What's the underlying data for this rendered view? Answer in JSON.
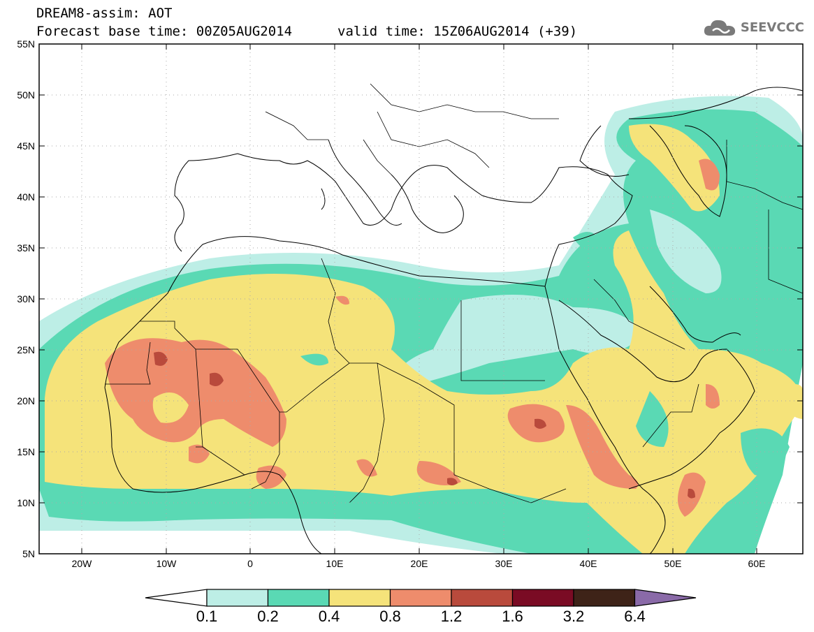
{
  "header": {
    "model": "DREAM8-assim: AOT",
    "base_time": "Forecast base time: 00Z05AUG2014",
    "valid_time": "valid time: 15Z06AUG2014 (+39)"
  },
  "logo": {
    "text": "SEEVCCC",
    "icon": "cloud-icon"
  },
  "map": {
    "lat_labels": [
      "55N",
      "50N",
      "45N",
      "40N",
      "35N",
      "30N",
      "25N",
      "20N",
      "15N",
      "10N",
      "5N"
    ],
    "lon_labels": [
      "20W",
      "10W",
      "0",
      "10E",
      "20E",
      "30E",
      "40E",
      "50E",
      "60E"
    ]
  },
  "colorbar": {
    "thresholds": [
      "0.1",
      "0.2",
      "0.4",
      "0.8",
      "1.2",
      "1.6",
      "3.2",
      "6.4"
    ],
    "colors": [
      "#bdeee6",
      "#5ad9b4",
      "#f5e37a",
      "#ee8c6c",
      "#b94a3c",
      "#7a0b24",
      "#3e2318"
    ],
    "over_color": "#8a6aa8",
    "under_color": "#ffffff"
  }
}
